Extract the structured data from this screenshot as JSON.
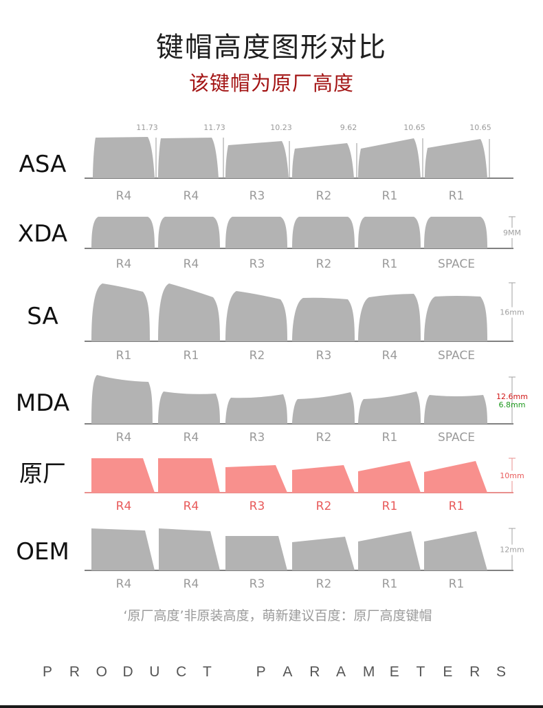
{
  "title": "键帽高度图形对比",
  "subtitle": "该键帽为原厂高度",
  "footnote": "‘原厂高度’非原装高度，萌新建议百度：原厂高度键帽",
  "footer": "PRODUCT PARAMETERS",
  "colors": {
    "keycap_gray": "#b3b3b3",
    "keycap_highlight": "#f8908d",
    "highlight_label": "#e85a5a",
    "row_label": "#9a9a9a",
    "baseline": "#808080",
    "mda_measure_top": "#d01515",
    "mda_measure_bottom": "#199619"
  },
  "profiles": [
    {
      "name": "ASA",
      "highlight": false,
      "rows": [
        "R4",
        "R4",
        "R3",
        "R2",
        "R1",
        "R1"
      ],
      "heights": [
        "11.73",
        "11.73",
        "10.23",
        "9.62",
        "10.65",
        "10.65"
      ],
      "measure": null
    },
    {
      "name": "XDA",
      "highlight": false,
      "rows": [
        "R4",
        "R4",
        "R3",
        "R2",
        "R1",
        "SPACE"
      ],
      "heights": [],
      "measure": [
        "9MM"
      ]
    },
    {
      "name": "SA",
      "highlight": false,
      "rows": [
        "R1",
        "R1",
        "R2",
        "R3",
        "R4",
        "SPACE"
      ],
      "heights": [],
      "measure": [
        "16mm"
      ]
    },
    {
      "name": "MDA",
      "highlight": false,
      "rows": [
        "R4",
        "R4",
        "R3",
        "R2",
        "R1",
        "SPACE"
      ],
      "heights": [],
      "measure": [
        "12.6mm",
        "6.8mm"
      ]
    },
    {
      "name": "原厂",
      "highlight": true,
      "rows": [
        "R4",
        "R4",
        "R3",
        "R2",
        "R1",
        "R1"
      ],
      "heights": [],
      "measure": [
        "10mm"
      ]
    },
    {
      "name": "OEM",
      "highlight": false,
      "rows": [
        "R4",
        "R4",
        "R3",
        "R2",
        "R1",
        "R1"
      ],
      "heights": [],
      "measure": [
        "12mm"
      ]
    }
  ]
}
